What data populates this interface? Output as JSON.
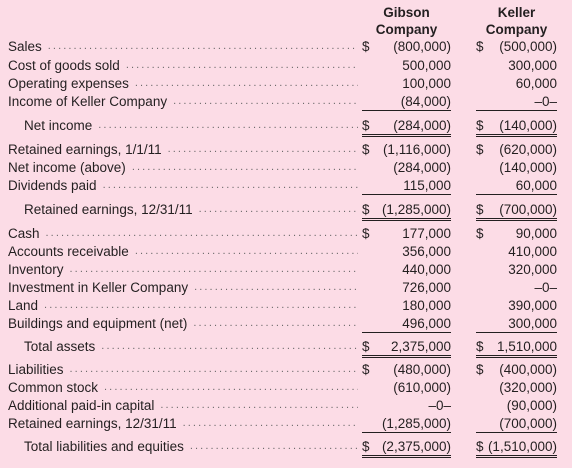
{
  "headers": {
    "gibson": [
      "Gibson",
      "Company"
    ],
    "keller": [
      "Keller",
      "Company"
    ]
  },
  "rows": [
    {
      "label": "Sales",
      "indent": false,
      "g": {
        "sym": "$",
        "num": "(800,000)"
      },
      "k": {
        "sym": "$",
        "num": "(500,000)"
      }
    },
    {
      "label": "Cost of goods sold",
      "indent": false,
      "g": {
        "sym": "",
        "num": "500,000"
      },
      "k": {
        "sym": "",
        "num": "300,000"
      }
    },
    {
      "label": "Operating expenses",
      "indent": false,
      "g": {
        "sym": "",
        "num": "100,000"
      },
      "k": {
        "sym": "",
        "num": "60,000"
      }
    },
    {
      "label": "Income of Keller Company",
      "indent": false,
      "g": {
        "sym": "",
        "num": "(84,000)",
        "rule": "single"
      },
      "k": {
        "sym": "",
        "num": "–0–",
        "rule": "single"
      }
    },
    {
      "label": "Net income",
      "indent": true,
      "g": {
        "sym": "$",
        "num": "(284,000)",
        "rule": "double"
      },
      "k": {
        "sym": "$",
        "num": "(140,000)",
        "rule": "double"
      }
    },
    {
      "label": "Retained earnings, 1/1/11",
      "indent": false,
      "g": {
        "sym": "$",
        "num": "(1,116,000)"
      },
      "k": {
        "sym": "$",
        "num": "(620,000)"
      }
    },
    {
      "label": "Net income (above)",
      "indent": false,
      "g": {
        "sym": "",
        "num": "(284,000)"
      },
      "k": {
        "sym": "",
        "num": "(140,000)"
      }
    },
    {
      "label": "Dividends paid",
      "indent": false,
      "g": {
        "sym": "",
        "num": "115,000",
        "rule": "single"
      },
      "k": {
        "sym": "",
        "num": "60,000",
        "rule": "single"
      }
    },
    {
      "label": "Retained earnings, 12/31/11",
      "indent": true,
      "g": {
        "sym": "$",
        "num": "(1,285,000)",
        "rule": "double"
      },
      "k": {
        "sym": "$",
        "num": "(700,000)",
        "rule": "double"
      }
    },
    {
      "label": "Cash",
      "indent": false,
      "g": {
        "sym": "$",
        "num": "177,000"
      },
      "k": {
        "sym": "$",
        "num": "90,000"
      }
    },
    {
      "label": "Accounts receivable",
      "indent": false,
      "g": {
        "sym": "",
        "num": "356,000"
      },
      "k": {
        "sym": "",
        "num": "410,000"
      }
    },
    {
      "label": "Inventory",
      "indent": false,
      "g": {
        "sym": "",
        "num": "440,000"
      },
      "k": {
        "sym": "",
        "num": "320,000"
      }
    },
    {
      "label": "Investment in Keller Company",
      "indent": false,
      "g": {
        "sym": "",
        "num": "726,000"
      },
      "k": {
        "sym": "",
        "num": "–0–"
      }
    },
    {
      "label": "Land",
      "indent": false,
      "g": {
        "sym": "",
        "num": "180,000"
      },
      "k": {
        "sym": "",
        "num": "390,000"
      }
    },
    {
      "label": "Buildings and equipment (net)",
      "indent": false,
      "g": {
        "sym": "",
        "num": "496,000",
        "rule": "single"
      },
      "k": {
        "sym": "",
        "num": "300,000",
        "rule": "single"
      }
    },
    {
      "label": "Total assets",
      "indent": true,
      "g": {
        "sym": "$",
        "num": "2,375,000",
        "rule": "double"
      },
      "k": {
        "sym": "$",
        "num": "1,510,000",
        "rule": "double"
      }
    },
    {
      "label": "Liabilities",
      "indent": false,
      "g": {
        "sym": "$",
        "num": "(480,000)"
      },
      "k": {
        "sym": "$",
        "num": "(400,000)"
      }
    },
    {
      "label": "Common stock",
      "indent": false,
      "g": {
        "sym": "",
        "num": "(610,000)"
      },
      "k": {
        "sym": "",
        "num": "(320,000)"
      }
    },
    {
      "label": "Additional paid-in capital",
      "indent": false,
      "g": {
        "sym": "",
        "num": "–0–"
      },
      "k": {
        "sym": "",
        "num": "(90,000)"
      }
    },
    {
      "label": "Retained earnings, 12/31/11",
      "indent": false,
      "g": {
        "sym": "",
        "num": "(1,285,000)",
        "rule": "single"
      },
      "k": {
        "sym": "",
        "num": "(700,000)",
        "rule": "single"
      }
    },
    {
      "label": "Total liabilities and equities",
      "indent": true,
      "g": {
        "sym": "$",
        "num": "(2,375,000)",
        "rule": "double"
      },
      "k": {
        "sym": "$",
        "num": "(1,510,000)",
        "rule": "double"
      }
    }
  ]
}
